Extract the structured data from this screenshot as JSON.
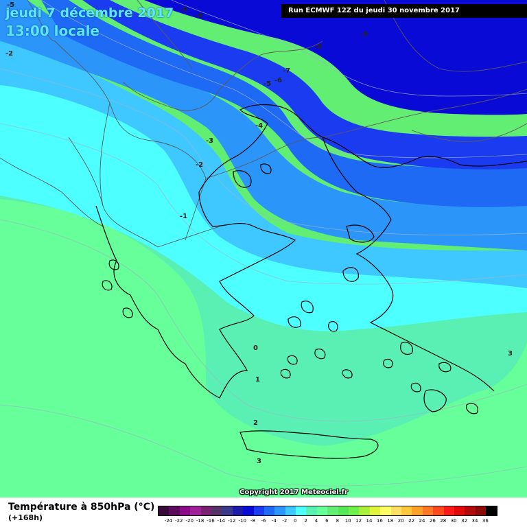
{
  "header": {
    "date": "jeudi 7 décembre 2017",
    "time": "13:00 locale",
    "run": "Run ECMWF 12Z du jeudi 30 novembre 2017"
  },
  "copyright": "Copyright 2017 Meteociel.fr",
  "footer": {
    "variable": "Température à 850hPa (°C)",
    "lead_time": "(+168h)"
  },
  "colors": {
    "band_le_minus9": "#0a0ad6",
    "band_minus8": "#1b3bf0",
    "band_minus6": "#1e6af5",
    "band_minus4": "#2b95fa",
    "band_minus2": "#3ec8ff",
    "band_0": "#4dffff",
    "band_1": "#5af0b4",
    "band_2": "#66ff99",
    "band_3": "#61ee72"
  },
  "scale": {
    "colors": [
      "#3a0a3a",
      "#5c0a5c",
      "#8a0a8a",
      "#a0209a",
      "#7a2070",
      "#553366",
      "#3a3a8a",
      "#1c1ca8",
      "#0a0ad6",
      "#1b3bf0",
      "#1e6af5",
      "#2b95fa",
      "#3ec8ff",
      "#4dffff",
      "#5af0b4",
      "#66ff99",
      "#61ee72",
      "#55e855",
      "#6ff04a",
      "#aaf03a",
      "#e0f53a",
      "#ffff66",
      "#ffe066",
      "#ffc83c",
      "#ffa028",
      "#ff7828",
      "#ff4a1e",
      "#ff1a1a",
      "#e00a0a",
      "#b00a0a",
      "#8a0a0a",
      "#000000"
    ],
    "labels": [
      "-24",
      "-22",
      "-20",
      "-18",
      "-16",
      "-14",
      "-12",
      "-10",
      "-8",
      "-6",
      "-4",
      "-2",
      "0",
      "2",
      "4",
      "6",
      "8",
      "10",
      "12",
      "14",
      "16",
      "18",
      "20",
      "22",
      "24",
      "26",
      "28",
      "30",
      "32",
      "34",
      "36"
    ]
  },
  "isotherm_labels": [
    "-5",
    "-9",
    "-9",
    "-9",
    "-2",
    "-8",
    "-7",
    "-6",
    "-5",
    "-4",
    "-3",
    "-2",
    "-1",
    "0",
    "1",
    "2",
    "3",
    "3"
  ]
}
